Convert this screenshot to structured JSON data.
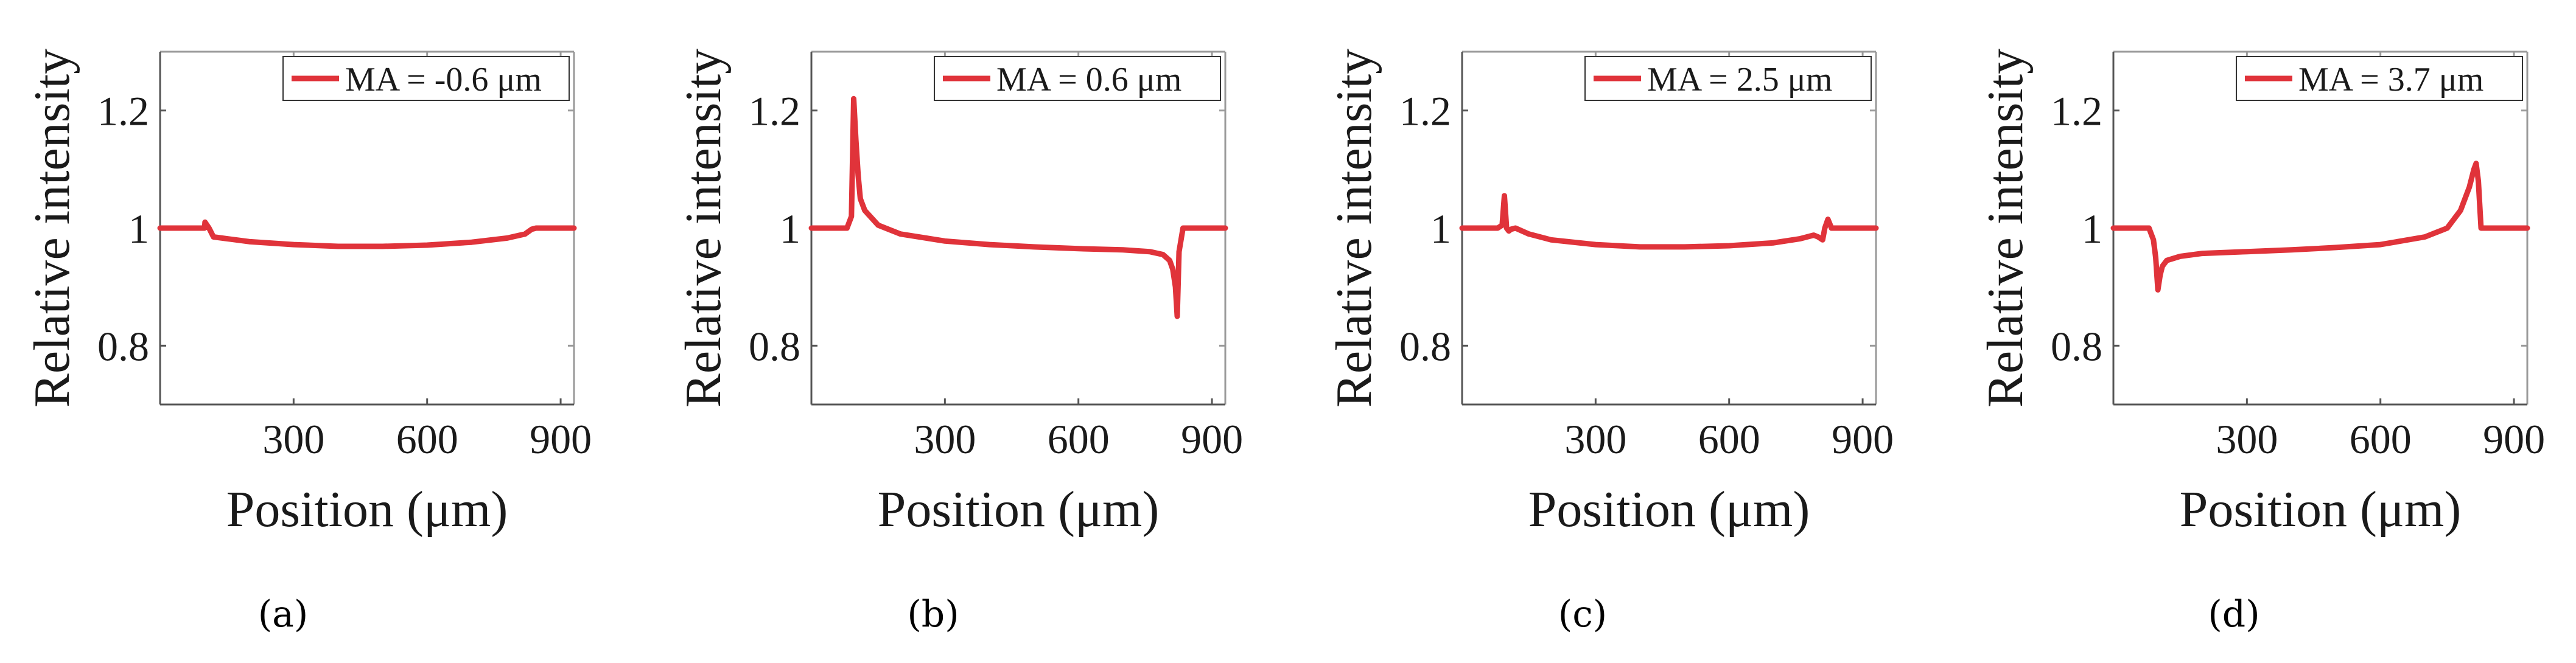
{
  "chart_data": [
    {
      "type": "line",
      "panel": "a",
      "series": [
        {
          "name": "MA = -0.6 μm",
          "color": "#e0333a",
          "x": [
            0,
            100,
            101,
            110,
            120,
            150,
            200,
            300,
            400,
            460,
            500,
            600,
            700,
            780,
            820,
            835,
            845,
            880,
            900,
            930
          ],
          "y": [
            1.0,
            1.0,
            1.01,
            1.0,
            0.985,
            0.982,
            0.977,
            0.972,
            0.969,
            0.969,
            0.969,
            0.971,
            0.976,
            0.983,
            0.99,
            0.998,
            1.0,
            1.0,
            1.0,
            1.0
          ]
        }
      ],
      "legend_text": "MA = -0.6 μm",
      "xlabel": "Position (μm)",
      "ylabel": "Relative intensity",
      "xticks": [
        "300",
        "600",
        "900"
      ],
      "yticks": [
        "0.8",
        "1",
        "1.2"
      ],
      "xlim": [
        0,
        930
      ],
      "ylim": [
        0.7,
        1.3
      ]
    },
    {
      "type": "line",
      "panel": "b",
      "series": [
        {
          "name": "MA = 0.6 μm",
          "color": "#e0333a",
          "x": [
            0,
            80,
            90,
            95,
            100,
            105,
            110,
            120,
            150,
            200,
            300,
            400,
            500,
            600,
            700,
            760,
            790,
            805,
            812,
            818,
            822,
            826,
            835,
            900,
            930
          ],
          "y": [
            1.0,
            1.0,
            1.02,
            1.22,
            1.15,
            1.09,
            1.05,
            1.03,
            1.005,
            0.99,
            0.978,
            0.972,
            0.968,
            0.965,
            0.963,
            0.96,
            0.955,
            0.945,
            0.93,
            0.9,
            0.85,
            0.96,
            1.0,
            1.0,
            1.0
          ]
        }
      ],
      "legend_text": "MA = 0.6 μm",
      "xlabel": "Position (μm)",
      "ylabel": "Relative intensity",
      "xticks": [
        "300",
        "600",
        "900"
      ],
      "yticks": [
        "0.8",
        "1",
        "1.2"
      ],
      "xlim": [
        0,
        930
      ],
      "ylim": [
        0.7,
        1.3
      ]
    },
    {
      "type": "line",
      "panel": "c",
      "series": [
        {
          "name": "MA = 2.5 μm",
          "color": "#e0333a",
          "x": [
            0,
            80,
            90,
            95,
            100,
            105,
            110,
            120,
            150,
            200,
            300,
            400,
            500,
            600,
            700,
            760,
            790,
            800,
            810,
            815,
            822,
            830,
            845,
            900,
            930
          ],
          "y": [
            1.0,
            1.0,
            1.005,
            1.055,
            1.0,
            0.995,
            0.998,
            1.0,
            0.99,
            0.98,
            0.972,
            0.968,
            0.968,
            0.97,
            0.975,
            0.982,
            0.988,
            0.985,
            0.98,
            1.0,
            1.015,
            1.0,
            1.0,
            1.0,
            1.0
          ]
        }
      ],
      "legend_text": "MA = 2.5 μm",
      "xlabel": "Position (μm)",
      "ylabel": "Relative intensity",
      "xticks": [
        "300",
        "600",
        "900"
      ],
      "yticks": [
        "0.8",
        "1",
        "1.2"
      ],
      "xlim": [
        0,
        930
      ],
      "ylim": [
        0.7,
        1.3
      ]
    },
    {
      "type": "line",
      "panel": "d",
      "series": [
        {
          "name": "MA = 3.7 μm",
          "color": "#e0333a",
          "x": [
            0,
            80,
            90,
            95,
            100,
            105,
            110,
            120,
            150,
            200,
            300,
            400,
            500,
            600,
            700,
            750,
            780,
            800,
            810,
            815,
            820,
            826,
            835,
            900,
            930
          ],
          "y": [
            1.0,
            1.0,
            0.98,
            0.95,
            0.895,
            0.92,
            0.935,
            0.945,
            0.952,
            0.957,
            0.96,
            0.963,
            0.967,
            0.972,
            0.985,
            1.0,
            1.03,
            1.07,
            1.1,
            1.11,
            1.08,
            1.0,
            1.0,
            1.0,
            1.0
          ]
        }
      ],
      "legend_text": "MA = 3.7 μm",
      "xlabel": "Position (μm)",
      "ylabel": "Relative intensity",
      "xticks": [
        "300",
        "600",
        "900"
      ],
      "yticks": [
        "0.8",
        "1",
        "1.2"
      ],
      "xlim": [
        0,
        930
      ],
      "ylim": [
        0.7,
        1.3
      ]
    }
  ],
  "labels": {
    "a": "(a)",
    "b": "(b)",
    "c": "(c)",
    "d": "(d)"
  }
}
